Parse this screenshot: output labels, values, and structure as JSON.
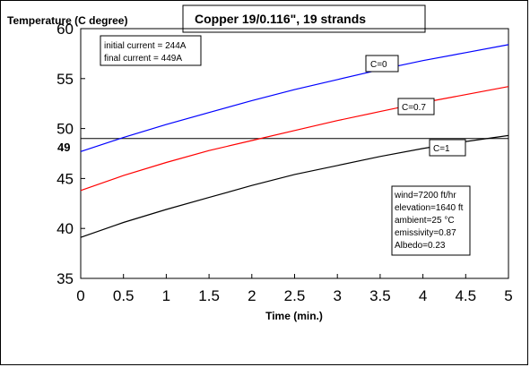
{
  "chart_data": {
    "type": "line",
    "title": "Copper 19/0.116\", 19 strands",
    "ylabel": "Temperature (C degree)",
    "xlabel": "Time (min.)",
    "xlim": [
      0,
      5
    ],
    "ylim": [
      35,
      60
    ],
    "x_ticks": [
      "0",
      "0.5",
      "1",
      "1.5",
      "2",
      "2.5",
      "3",
      "3.5",
      "4",
      "4.5",
      "5"
    ],
    "y_ticks": [
      "35",
      "40",
      "45",
      "50",
      "55",
      "60"
    ],
    "reference_line": {
      "y": 49,
      "label": "49"
    },
    "notes_top": [
      "initial current = 244A",
      "final current = 449A"
    ],
    "notes_bottom": [
      "wind=7200 ft/hr",
      "elevation=1640 ft",
      "ambient=25 °C",
      "emissivity=0.87",
      "Albedo=0.23"
    ],
    "grid": false,
    "series": [
      {
        "name": "C=0",
        "color": "#0000ff",
        "x": [
          0,
          0.5,
          1,
          1.5,
          2,
          2.5,
          3,
          3.5,
          4,
          4.5,
          5
        ],
        "values": [
          47.7,
          49.1,
          50.4,
          51.6,
          52.8,
          53.9,
          54.9,
          55.9,
          56.8,
          57.6,
          58.4
        ]
      },
      {
        "name": "C=0.7",
        "color": "#ff0000",
        "x": [
          0,
          0.5,
          1,
          1.5,
          2,
          2.5,
          3,
          3.5,
          4,
          4.5,
          5
        ],
        "values": [
          43.8,
          45.3,
          46.6,
          47.8,
          48.8,
          49.8,
          50.8,
          51.7,
          52.6,
          53.4,
          54.2
        ]
      },
      {
        "name": "C=1",
        "color": "#000000",
        "x": [
          0,
          0.5,
          1,
          1.5,
          2,
          2.5,
          3,
          3.5,
          4,
          4.5,
          5
        ],
        "values": [
          39.1,
          40.6,
          41.9,
          43.1,
          44.3,
          45.4,
          46.3,
          47.2,
          48.0,
          48.7,
          49.3
        ]
      }
    ]
  }
}
